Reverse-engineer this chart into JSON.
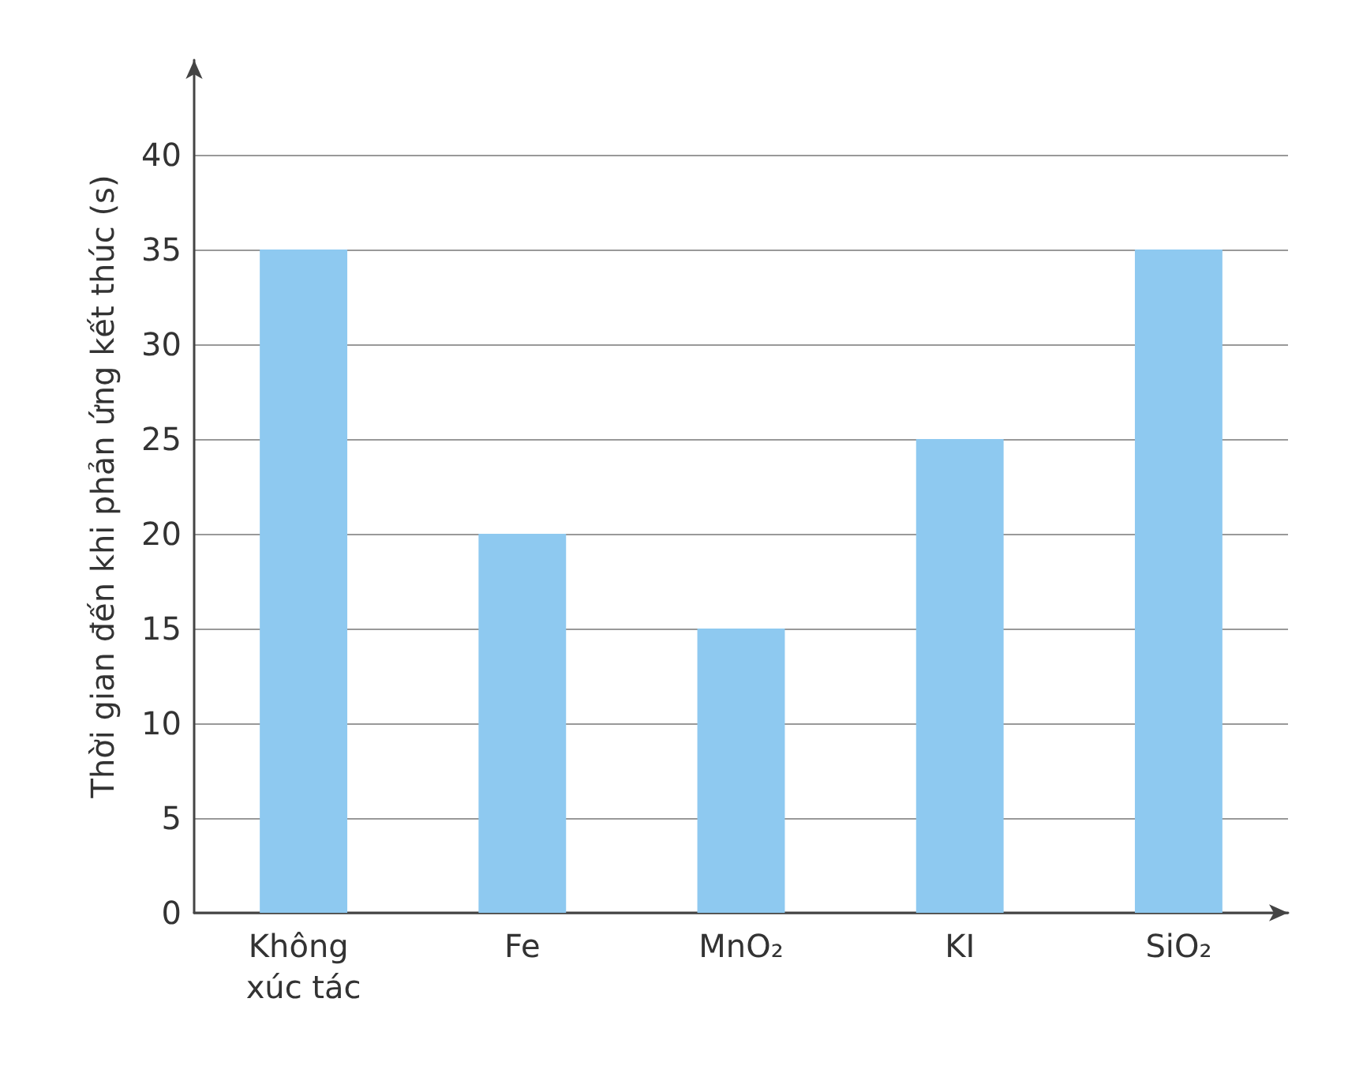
{
  "chart_data": {
    "type": "bar",
    "ylabel": "Thời gian đến khi phản ứng kết thúc (s)",
    "categories": [
      "Không xúc tác",
      "Fe",
      "MnO₂",
      "KI",
      "SiO₂"
    ],
    "values": [
      35,
      20,
      15,
      25,
      35
    ],
    "color": "#8ec9f0",
    "ylim": [
      0,
      45
    ],
    "yticks": [
      0,
      5,
      10,
      15,
      20,
      25,
      30,
      35,
      40
    ],
    "grid": "y"
  }
}
